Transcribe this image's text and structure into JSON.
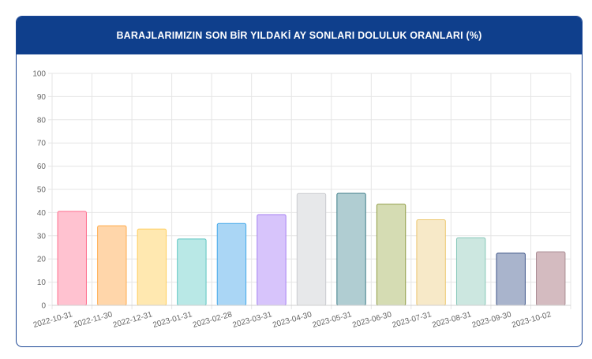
{
  "header": {
    "title": "BARAJLARIMIZIN SON BİR YILDAKİ AY SONLARI DOLULUK ORANLARI (%)"
  },
  "chart_data": {
    "type": "bar",
    "title": "BARAJLARIMIZIN SON BİR YILDAKİ AY SONLARI DOLULUK ORANLARI (%)",
    "xlabel": "",
    "ylabel": "",
    "ylim": [
      0,
      100
    ],
    "yticks": [
      0,
      10,
      20,
      30,
      40,
      50,
      60,
      70,
      80,
      90,
      100
    ],
    "grid": true,
    "categories": [
      "2022-10-31",
      "2022-11-30",
      "2022-12-31",
      "2023-01-31",
      "2023-02-28",
      "2023-03-31",
      "2023-04-30",
      "2023-05-31",
      "2023-06-30",
      "2023-07-31",
      "2023-08-31",
      "2023-09-30",
      "2023-10-02"
    ],
    "values": [
      40.5,
      34.3,
      32.9,
      28.6,
      35.3,
      39.1,
      48.2,
      48.3,
      43.6,
      36.9,
      29.1,
      22.5,
      23.1
    ],
    "colors": {
      "fills": [
        "#ffc2d0",
        "#ffd6aa",
        "#ffe8b0",
        "#b9e8e6",
        "#aad6f5",
        "#d7c4fb",
        "#e7e8ea",
        "#b0cdd2",
        "#d5dcb3",
        "#f7e9c8",
        "#cce7e0",
        "#a9b4cc",
        "#d4bbc0"
      ],
      "strokes": [
        "#ff6f8e",
        "#ffac4f",
        "#ffcd5a",
        "#5dc5c2",
        "#42a8ea",
        "#a47ff2",
        "#c9cbcf",
        "#3e7d88",
        "#8f9c44",
        "#ecc76e",
        "#86c7b8",
        "#3d5488",
        "#a98b92"
      ],
      "header": "#0f3f8c",
      "grid": "#e5e5e5"
    }
  }
}
